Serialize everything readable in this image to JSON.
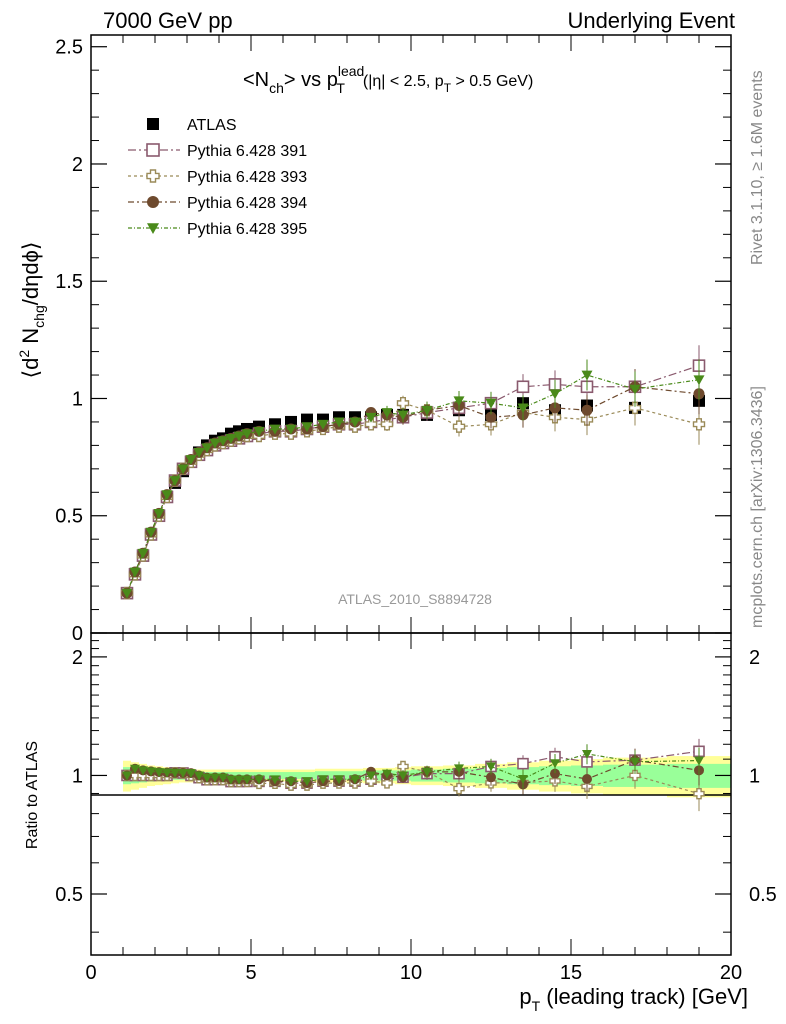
{
  "header": {
    "left": "7000 GeV pp",
    "right": "Underlying Event"
  },
  "side_text": {
    "top": "Rivet 3.1.10, ≥ 1.6M events",
    "bottom": "mcplots.cern.ch [arXiv:1306.3436]"
  },
  "chart_data": [
    {
      "type": "scatter",
      "panel": "main",
      "title": {
        "lt": "<N",
        "ch": "ch",
        "vs": "> vs p",
        "lead": "lead",
        "T": "T",
        "cut1": "(|η| < 2.5, p",
        "cut_T": "T",
        "cut2": " > 0.5 GeV)"
      },
      "ylabel": "⟨d² N_chg/dηdϕ⟩",
      "ylabel_parts": {
        "a": "⟨d",
        "b": "2",
        "c": " N",
        "d": "chg",
        "e": "/dηdϕ⟩"
      },
      "xlim": [
        0,
        20
      ],
      "ylim": [
        0,
        2.55
      ],
      "yticks": [
        0,
        0.5,
        1,
        1.5,
        2,
        2.5
      ],
      "ytick_labels": [
        "0",
        "0.5",
        "1",
        "1.5",
        "2",
        "2.5"
      ],
      "watermark": "ATLAS_2010_S8894728",
      "legend_position": "top-left",
      "x": [
        1.125,
        1.375,
        1.625,
        1.875,
        2.125,
        2.375,
        2.625,
        2.875,
        3.125,
        3.375,
        3.625,
        3.875,
        4.125,
        4.375,
        4.625,
        4.875,
        5.25,
        5.75,
        6.25,
        6.75,
        7.25,
        7.75,
        8.25,
        8.75,
        9.25,
        9.75,
        10.5,
        11.5,
        12.5,
        13.5,
        14.5,
        15.5,
        17.0,
        19.0
      ],
      "series": [
        {
          "name": "ATLAS",
          "marker": "filled-square",
          "color": "#000000",
          "y": [
            0.17,
            0.25,
            0.33,
            0.42,
            0.5,
            0.58,
            0.64,
            0.69,
            0.73,
            0.77,
            0.8,
            0.82,
            0.83,
            0.85,
            0.86,
            0.87,
            0.88,
            0.89,
            0.9,
            0.91,
            0.91,
            0.92,
            0.92,
            0.92,
            0.93,
            0.93,
            0.93,
            0.95,
            0.93,
            0.98,
            0.95,
            0.97,
            0.96,
            0.99
          ]
        },
        {
          "name": "Pythia 6.428 391",
          "marker": "open-square",
          "color": "#8a5a6e",
          "y": [
            0.17,
            0.25,
            0.33,
            0.42,
            0.5,
            0.58,
            0.65,
            0.7,
            0.73,
            0.76,
            0.78,
            0.8,
            0.81,
            0.82,
            0.83,
            0.84,
            0.85,
            0.86,
            0.86,
            0.87,
            0.88,
            0.89,
            0.89,
            0.9,
            0.91,
            0.92,
            0.94,
            0.96,
            0.98,
            1.05,
            1.06,
            1.05,
            1.05,
            1.14
          ]
        },
        {
          "name": "Pythia 6.428 393",
          "marker": "open-cross",
          "color": "#9a8a58",
          "y": [
            0.17,
            0.25,
            0.33,
            0.42,
            0.5,
            0.58,
            0.65,
            0.7,
            0.73,
            0.76,
            0.78,
            0.8,
            0.81,
            0.82,
            0.83,
            0.84,
            0.84,
            0.85,
            0.85,
            0.86,
            0.87,
            0.88,
            0.88,
            0.89,
            0.89,
            0.98,
            0.95,
            0.88,
            0.89,
            0.94,
            0.92,
            0.91,
            0.96,
            0.89
          ]
        },
        {
          "name": "Pythia 6.428 394",
          "marker": "filled-circle",
          "color": "#6e4a2e",
          "y": [
            0.17,
            0.26,
            0.34,
            0.43,
            0.51,
            0.59,
            0.65,
            0.7,
            0.74,
            0.77,
            0.79,
            0.81,
            0.82,
            0.83,
            0.84,
            0.85,
            0.86,
            0.86,
            0.87,
            0.87,
            0.88,
            0.89,
            0.9,
            0.94,
            0.93,
            0.92,
            0.95,
            0.97,
            0.92,
            0.93,
            0.96,
            0.95,
            1.05,
            1.02
          ]
        },
        {
          "name": "Pythia 6.428 395",
          "marker": "filled-triangle-down",
          "color": "#4a8a1a",
          "y": [
            0.17,
            0.26,
            0.34,
            0.43,
            0.51,
            0.59,
            0.65,
            0.7,
            0.74,
            0.77,
            0.79,
            0.81,
            0.82,
            0.83,
            0.84,
            0.85,
            0.86,
            0.87,
            0.87,
            0.88,
            0.89,
            0.9,
            0.9,
            0.92,
            0.94,
            0.93,
            0.95,
            0.99,
            0.98,
            0.96,
            1.02,
            1.1,
            1.04,
            1.08
          ]
        }
      ]
    },
    {
      "type": "scatter",
      "panel": "ratio",
      "ylabel": "Ratio to ATLAS",
      "xlabel": "p_T (leading track) [GeV]",
      "xlabel_parts": {
        "p": "p",
        "T": "T",
        "rest": " (leading track) [GeV]"
      },
      "xlim": [
        0,
        20
      ],
      "ylim": [
        0.35,
        2.3
      ],
      "xticks": [
        0,
        5,
        10,
        15,
        20
      ],
      "xtick_labels": [
        "0",
        "5",
        "10",
        "15",
        "20"
      ],
      "yticks": [
        0.5,
        1,
        2
      ],
      "ytick_labels": [
        "0.5",
        "1",
        "2"
      ],
      "band_colors": {
        "stat": "#99ff99",
        "total": "#ffff99"
      },
      "band_edges": [
        1.0,
        1.25,
        1.5,
        1.75,
        2.0,
        2.25,
        2.5,
        2.75,
        3.0,
        3.25,
        3.5,
        3.75,
        4.0,
        4.25,
        4.5,
        4.75,
        5.0,
        5.5,
        6.0,
        6.5,
        7.0,
        7.5,
        8.0,
        8.5,
        9.0,
        9.5,
        10.0,
        11.0,
        12.0,
        13.0,
        14.0,
        15.0,
        16.0,
        18.0,
        20.0
      ],
      "band_total_halfwidth": [
        0.09,
        0.08,
        0.07,
        0.06,
        0.055,
        0.05,
        0.045,
        0.04,
        0.04,
        0.035,
        0.035,
        0.035,
        0.035,
        0.035,
        0.035,
        0.035,
        0.035,
        0.035,
        0.035,
        0.035,
        0.04,
        0.04,
        0.04,
        0.045,
        0.045,
        0.05,
        0.055,
        0.06,
        0.07,
        0.08,
        0.09,
        0.1,
        0.11,
        0.12
      ],
      "band_stat_halfwidth": [
        0.05,
        0.045,
        0.04,
        0.035,
        0.03,
        0.03,
        0.025,
        0.025,
        0.02,
        0.02,
        0.02,
        0.02,
        0.02,
        0.02,
        0.02,
        0.02,
        0.02,
        0.02,
        0.02,
        0.02,
        0.025,
        0.025,
        0.025,
        0.03,
        0.03,
        0.03,
        0.035,
        0.04,
        0.045,
        0.05,
        0.055,
        0.06,
        0.065,
        0.07
      ],
      "series_names": [
        "Pythia 6.428 391",
        "Pythia 6.428 393",
        "Pythia 6.428 394",
        "Pythia 6.428 395"
      ]
    }
  ]
}
